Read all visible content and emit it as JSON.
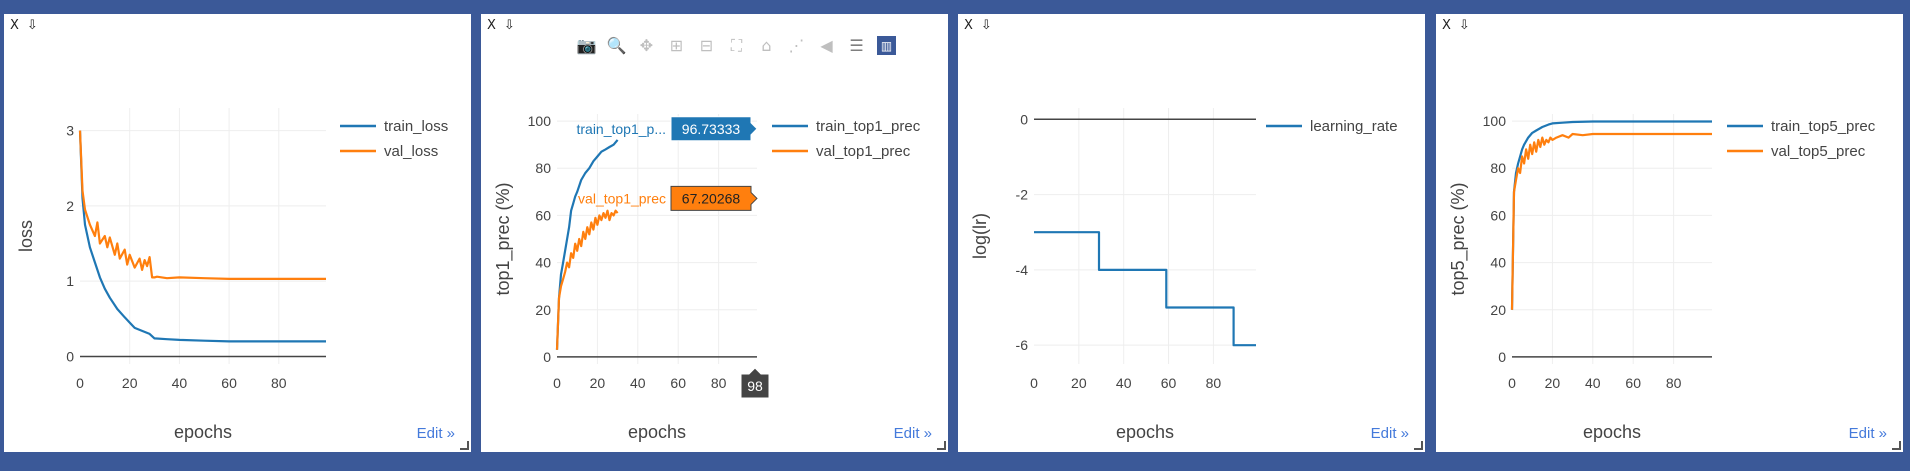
{
  "panels": [
    {
      "close_label": "X",
      "download_icon": "download-icon",
      "edit_label": "Edit »"
    },
    {
      "close_label": "X",
      "download_icon": "download-icon",
      "edit_label": "Edit »",
      "modebar": [
        "camera-icon",
        "zoom-icon",
        "pan-icon",
        "zoom-in-icon",
        "zoom-out-icon",
        "autoscale-icon",
        "reset-axes-icon",
        "spike-lines-icon",
        "hover-closest-icon",
        "hover-compare-icon",
        "plotly-logo-icon"
      ],
      "hover": {
        "train_label": "train_top1_p...",
        "train_value": "96.73333",
        "val_label": "val_top1_prec",
        "val_value": "67.20268",
        "x_value": "98"
      }
    },
    {
      "close_label": "X",
      "download_icon": "download-icon",
      "edit_label": "Edit »"
    },
    {
      "close_label": "X",
      "download_icon": "download-icon",
      "edit_label": "Edit »"
    }
  ],
  "chart_data": [
    {
      "type": "line",
      "xlabel": "epochs",
      "ylabel": "loss",
      "xlim": [
        0,
        99
      ],
      "ylim": [
        -0.1,
        3.3
      ],
      "xticks": [
        0,
        20,
        40,
        60,
        80
      ],
      "yticks": [
        0,
        1,
        2,
        3
      ],
      "legend": "top-right",
      "grid": true,
      "series": [
        {
          "name": "train_loss",
          "color": "#1f77b4",
          "x": [
            0,
            1,
            2,
            4,
            6,
            8,
            10,
            12,
            15,
            18,
            20,
            22,
            25,
            28,
            30,
            35,
            40,
            50,
            60,
            70,
            80,
            90,
            99
          ],
          "y": [
            3.0,
            2.1,
            1.75,
            1.45,
            1.25,
            1.05,
            0.9,
            0.78,
            0.63,
            0.52,
            0.45,
            0.38,
            0.34,
            0.3,
            0.24,
            0.23,
            0.22,
            0.21,
            0.2,
            0.2,
            0.2,
            0.2,
            0.2
          ]
        },
        {
          "name": "val_loss",
          "color": "#ff7f0e",
          "x": [
            0,
            1,
            2,
            4,
            6,
            7,
            8,
            10,
            11,
            12,
            14,
            15,
            16,
            18,
            19,
            20,
            22,
            24,
            25,
            26,
            27,
            28,
            29,
            30,
            31,
            35,
            40,
            50,
            60,
            70,
            80,
            90,
            99
          ],
          "y": [
            3.0,
            2.2,
            1.95,
            1.75,
            1.6,
            1.78,
            1.5,
            1.6,
            1.45,
            1.58,
            1.35,
            1.5,
            1.3,
            1.42,
            1.22,
            1.35,
            1.18,
            1.3,
            1.15,
            1.28,
            1.2,
            1.32,
            1.05,
            1.05,
            1.06,
            1.04,
            1.05,
            1.04,
            1.03,
            1.03,
            1.03,
            1.03,
            1.03
          ]
        }
      ]
    },
    {
      "type": "line",
      "xlabel": "epochs",
      "ylabel": "top1_prec (%)",
      "xlim": [
        0,
        99
      ],
      "ylim": [
        -3,
        103
      ],
      "xticks": [
        0,
        20,
        40,
        60,
        80
      ],
      "yticks": [
        0,
        20,
        40,
        60,
        80,
        100
      ],
      "legend": "top-right",
      "grid": true,
      "series": [
        {
          "name": "train_top1_prec",
          "color": "#1f77b4",
          "x": [
            0,
            1,
            2,
            3,
            4,
            5,
            6,
            7,
            8,
            9,
            10,
            12,
            14,
            16,
            18,
            20,
            22,
            24,
            26,
            28,
            30
          ],
          "y": [
            3,
            25,
            35,
            40,
            45,
            50,
            55,
            62,
            65,
            68,
            70,
            75,
            78,
            80,
            83,
            85,
            87,
            88,
            89,
            90,
            92
          ]
        },
        {
          "name": "val_top1_prec",
          "color": "#ff7f0e",
          "x": [
            0,
            1,
            2,
            3,
            4,
            5,
            6,
            7,
            8,
            9,
            10,
            11,
            12,
            13,
            14,
            15,
            16,
            17,
            18,
            19,
            20,
            21,
            22,
            23,
            24,
            25,
            26,
            27,
            28,
            29,
            30
          ],
          "y": [
            3,
            25,
            30,
            33,
            36,
            40,
            38,
            44,
            42,
            48,
            45,
            50,
            47,
            53,
            50,
            55,
            52,
            57,
            54,
            59,
            56,
            60,
            58,
            61,
            59,
            62,
            58,
            61,
            60,
            62,
            61
          ]
        }
      ]
    },
    {
      "type": "line",
      "xlabel": "epochs",
      "ylabel": "log(lr)",
      "xlim": [
        0,
        99
      ],
      "ylim": [
        -6.5,
        0.3
      ],
      "xticks": [
        0,
        20,
        40,
        60,
        80
      ],
      "yticks": [
        0,
        -2,
        -4,
        -6
      ],
      "legend": "top-right",
      "grid": true,
      "series": [
        {
          "name": "learning_rate",
          "color": "#1f77b4",
          "x": [
            0,
            29,
            29,
            59,
            59,
            89,
            89,
            99
          ],
          "y": [
            -3,
            -3,
            -4,
            -4,
            -5,
            -5,
            -6,
            -6
          ]
        }
      ]
    },
    {
      "type": "line",
      "xlabel": "epochs",
      "ylabel": "top5_prec (%)",
      "xlim": [
        0,
        99
      ],
      "ylim": [
        -3,
        103
      ],
      "xticks": [
        0,
        20,
        40,
        60,
        80
      ],
      "yticks": [
        0,
        20,
        40,
        60,
        80,
        100
      ],
      "legend": "top-right",
      "grid": true,
      "series": [
        {
          "name": "train_top5_prec",
          "color": "#1f77b4",
          "x": [
            0,
            1,
            2,
            3,
            4,
            5,
            6,
            8,
            10,
            12,
            15,
            18,
            20,
            25,
            30,
            40,
            50,
            60,
            70,
            80,
            90,
            99
          ],
          "y": [
            20,
            70,
            78,
            82,
            85,
            88,
            90,
            93,
            95,
            96,
            97.5,
            98.5,
            99,
            99.3,
            99.6,
            99.8,
            99.8,
            99.8,
            99.8,
            99.8,
            99.8,
            99.8
          ]
        },
        {
          "name": "val_top5_prec",
          "color": "#ff7f0e",
          "x": [
            0,
            1,
            2,
            3,
            4,
            5,
            6,
            7,
            8,
            9,
            10,
            11,
            12,
            13,
            14,
            15,
            16,
            17,
            18,
            19,
            20,
            22,
            25,
            28,
            30,
            35,
            40,
            50,
            60,
            70,
            80,
            90,
            99
          ],
          "y": [
            20,
            70,
            75,
            80,
            78,
            85,
            82,
            88,
            84,
            90,
            86,
            91,
            87,
            92,
            89,
            93,
            90,
            92,
            91,
            93,
            92,
            93,
            94,
            93,
            94.5,
            94,
            94.5,
            94.5,
            94.5,
            94.5,
            94.5,
            94.5,
            94.5
          ]
        }
      ]
    }
  ]
}
